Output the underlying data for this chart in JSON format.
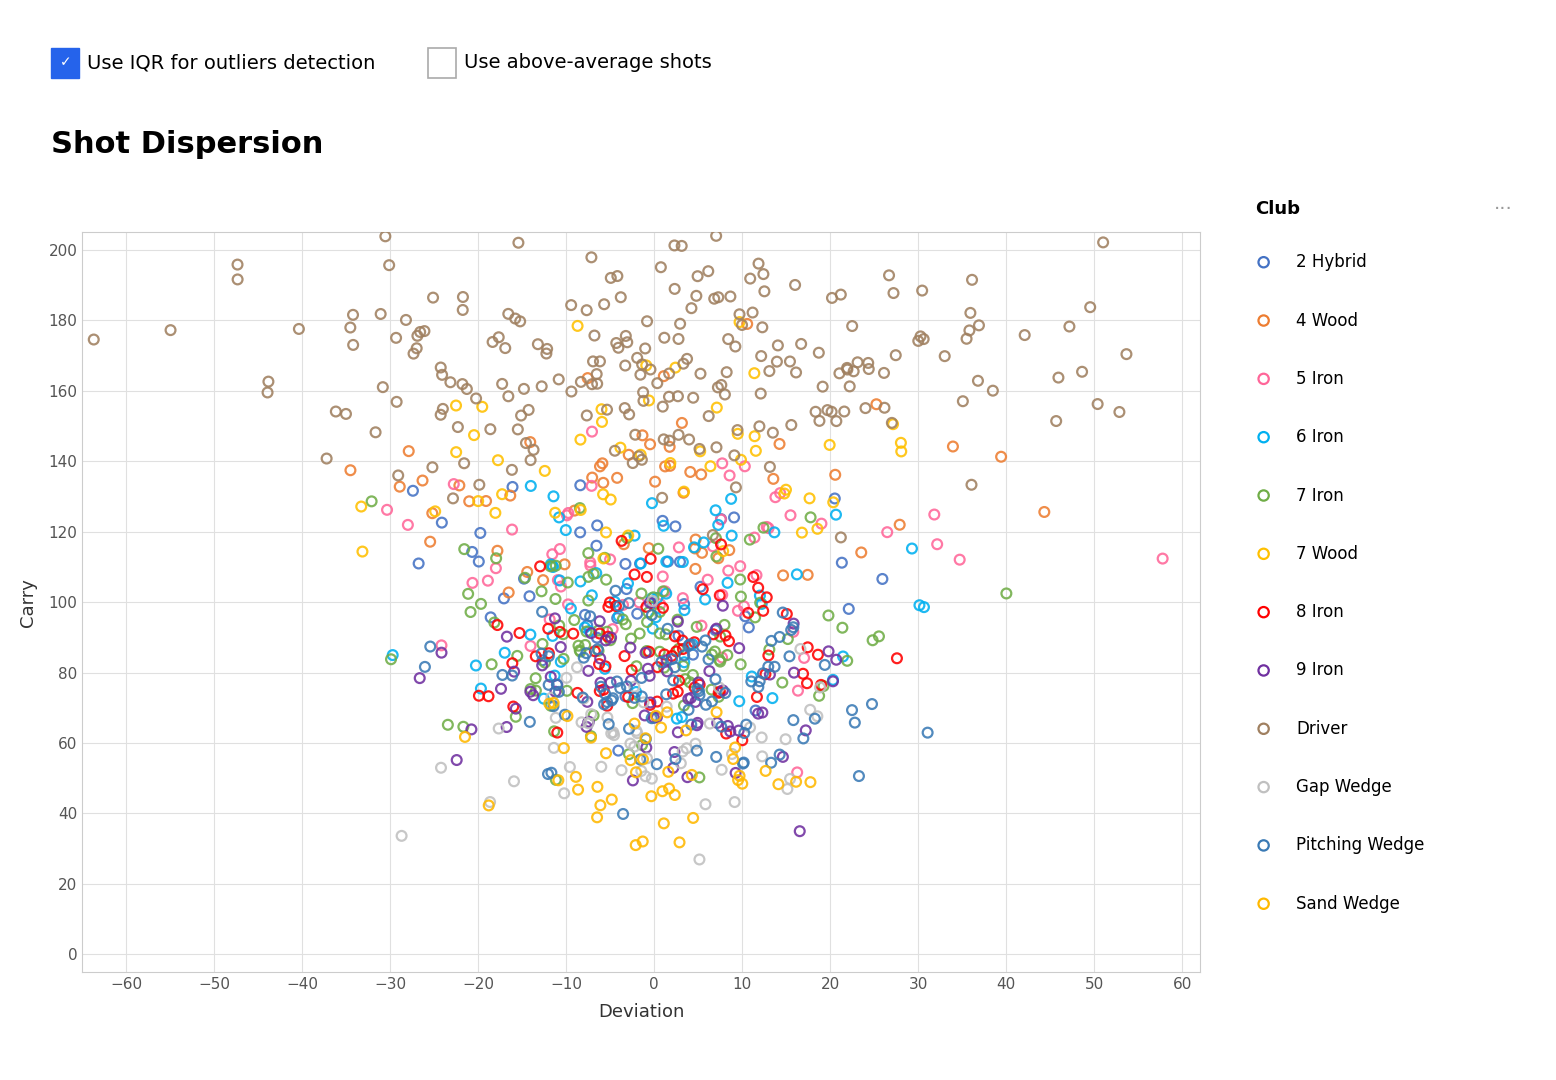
{
  "title": "Shot Dispersion",
  "xlabel": "Deviation",
  "ylabel": "Carry",
  "xlim": [
    -65,
    62
  ],
  "ylim": [
    -5,
    205
  ],
  "xticks": [
    -60,
    -50,
    -40,
    -30,
    -20,
    -10,
    0,
    10,
    20,
    30,
    40,
    50,
    60
  ],
  "yticks": [
    0,
    20,
    40,
    60,
    80,
    100,
    120,
    140,
    160,
    180,
    200
  ],
  "checkbox1_label": "Use IQR for outliers detection",
  "checkbox2_label": "Use above-average shots",
  "legend_title": "Club",
  "clubs": [
    {
      "name": "2 Hybrid",
      "color": "#4472C4",
      "mean_carry": 105,
      "std_carry": 18,
      "mean_dev": 0,
      "std_dev": 14,
      "n": 45
    },
    {
      "name": "4 Wood",
      "color": "#ED7D31",
      "mean_carry": 130,
      "std_carry": 18,
      "mean_dev": 0,
      "std_dev": 18,
      "n": 55
    },
    {
      "name": "5 Iron",
      "color": "#FF6699",
      "mean_carry": 110,
      "std_carry": 18,
      "mean_dev": 0,
      "std_dev": 15,
      "n": 60
    },
    {
      "name": "6 Iron",
      "color": "#00B0F0",
      "mean_carry": 100,
      "std_carry": 16,
      "mean_dev": 0,
      "std_dev": 14,
      "n": 65
    },
    {
      "name": "7 Iron",
      "color": "#70AD47",
      "mean_carry": 90,
      "std_carry": 15,
      "mean_dev": 0,
      "std_dev": 13,
      "n": 110
    },
    {
      "name": "7 Wood",
      "color": "#FFC000",
      "mean_carry": 140,
      "std_carry": 15,
      "mean_dev": 0,
      "std_dev": 16,
      "n": 50
    },
    {
      "name": "8 Iron",
      "color": "#FF0000",
      "mean_carry": 82,
      "std_carry": 14,
      "mean_dev": 0,
      "std_dev": 12,
      "n": 75
    },
    {
      "name": "9 Iron",
      "color": "#7030A0",
      "mean_carry": 72,
      "std_carry": 13,
      "mean_dev": 0,
      "std_dev": 11,
      "n": 75
    },
    {
      "name": "Driver",
      "color": "#A08060",
      "mean_carry": 165,
      "std_carry": 18,
      "mean_dev": 0,
      "std_dev": 22,
      "n": 220
    },
    {
      "name": "Gap Wedge",
      "color": "#C0C0C0",
      "mean_carry": 62,
      "std_carry": 12,
      "mean_dev": 0,
      "std_dev": 10,
      "n": 55
    },
    {
      "name": "Pitching Wedge",
      "color": "#3A7AB5",
      "mean_carry": 75,
      "std_carry": 13,
      "mean_dev": 0,
      "std_dev": 12,
      "n": 95
    },
    {
      "name": "Sand Wedge",
      "color": "#FFB800",
      "mean_carry": 52,
      "std_carry": 12,
      "mean_dev": 0,
      "std_dev": 10,
      "n": 45
    }
  ],
  "background_color": "#ffffff",
  "grid_color": "#e0e0e0",
  "title_fontsize": 22,
  "axis_label_fontsize": 13,
  "tick_fontsize": 11,
  "legend_fontsize": 12
}
